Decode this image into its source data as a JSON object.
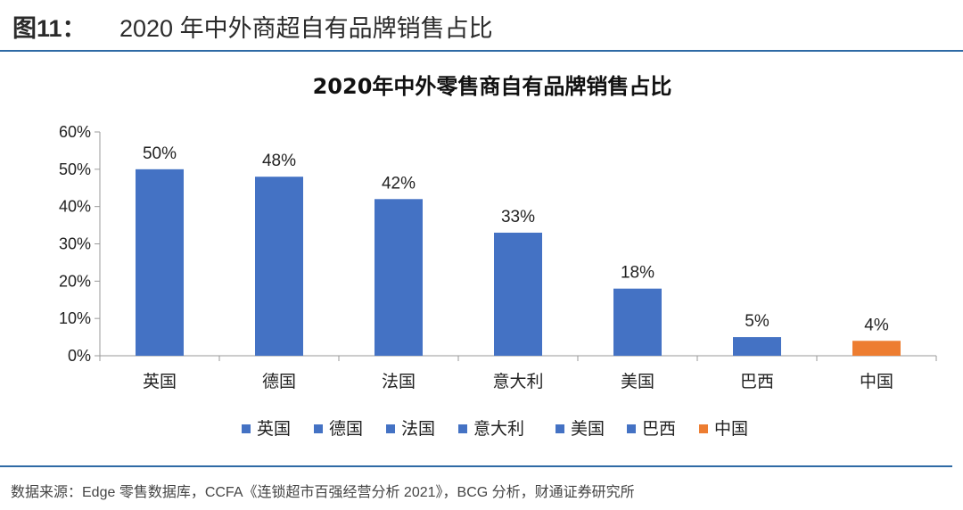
{
  "header": {
    "figure_number": "图11：",
    "figure_title": "2020 年中外商超自有品牌销售占比"
  },
  "chart_data": {
    "type": "bar",
    "title": "2020年中外零售商自有品牌销售占比",
    "categories": [
      "英国",
      "德国",
      "法国",
      "意大利",
      "美国",
      "巴西",
      "中国"
    ],
    "values": [
      50,
      48,
      42,
      33,
      18,
      5,
      4
    ],
    "data_labels": [
      "50%",
      "48%",
      "42%",
      "33%",
      "18%",
      "5%",
      "4%"
    ],
    "bar_colors": [
      "#4472c4",
      "#4472c4",
      "#4472c4",
      "#4472c4",
      "#4472c4",
      "#4472c4",
      "#ed7d31"
    ],
    "ylim": [
      0,
      60
    ],
    "yticks": [
      0,
      10,
      20,
      30,
      40,
      50,
      60
    ],
    "ytick_labels": [
      "0%",
      "10%",
      "20%",
      "30%",
      "40%",
      "50%",
      "60%"
    ],
    "grid": false,
    "legend_position": "bottom"
  },
  "footer": {
    "source": "数据来源：Edge 零售数据库，CCFA《连锁超市百强经营分析 2021》，BCG 分析，财通证券研究所"
  }
}
